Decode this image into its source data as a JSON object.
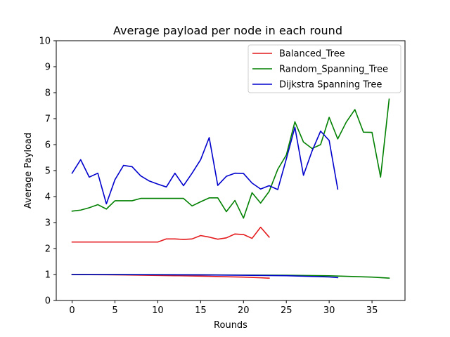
{
  "chart_data": {
    "type": "line",
    "title": "Average payload per node in each round",
    "xlabel": "Rounds",
    "ylabel": "Average Payload",
    "xlim": [
      -1.85,
      38.85
    ],
    "ylim": [
      0,
      10
    ],
    "xticks": [
      0,
      5,
      10,
      15,
      20,
      25,
      30,
      35
    ],
    "yticks": [
      0,
      1,
      2,
      3,
      4,
      5,
      6,
      7,
      8,
      9,
      10
    ],
    "legend_position": "top-right",
    "grid": false,
    "series": [
      {
        "name": "Balanced_Tree",
        "color": "#e41a1c",
        "x": [
          0,
          1,
          2,
          3,
          4,
          5,
          6,
          7,
          8,
          9,
          10,
          11,
          12,
          13,
          14,
          15,
          16,
          17,
          18,
          19,
          20,
          21,
          22,
          23
        ],
        "y": [
          2.25,
          2.25,
          2.25,
          2.25,
          2.25,
          2.25,
          2.25,
          2.25,
          2.25,
          2.25,
          2.25,
          2.37,
          2.37,
          2.35,
          2.37,
          2.5,
          2.44,
          2.36,
          2.41,
          2.56,
          2.54,
          2.39,
          2.82,
          2.44
        ]
      },
      {
        "name": "Balanced_Tree",
        "color": "#e41a1c",
        "x": [
          0,
          2,
          4,
          6,
          8,
          10,
          12,
          14,
          16,
          18,
          20,
          22,
          23
        ],
        "y": [
          1.0,
          0.995,
          0.99,
          0.985,
          0.975,
          0.965,
          0.955,
          0.945,
          0.93,
          0.915,
          0.9,
          0.875,
          0.86
        ]
      },
      {
        "name": "Random_Spanning_Tree",
        "color": "#008000",
        "x": [
          0,
          1,
          2,
          3,
          4,
          5,
          6,
          7,
          8,
          9,
          10,
          11,
          12,
          13,
          14,
          15,
          16,
          17,
          18,
          19,
          20,
          21,
          22,
          23,
          24,
          25,
          26,
          27,
          28,
          29,
          30,
          31,
          32,
          33,
          34,
          35,
          36,
          37
        ],
        "y": [
          3.44,
          3.48,
          3.57,
          3.69,
          3.52,
          3.84,
          3.84,
          3.84,
          3.93,
          3.93,
          3.93,
          3.93,
          3.93,
          3.93,
          3.64,
          3.8,
          3.95,
          3.95,
          3.42,
          3.85,
          3.17,
          4.15,
          3.75,
          4.2,
          5.05,
          5.6,
          6.88,
          6.1,
          5.85,
          6.0,
          7.05,
          6.22,
          6.87,
          7.35,
          6.48,
          6.47,
          4.75,
          7.75
        ]
      },
      {
        "name": "Random_Spanning_Tree",
        "color": "#008000",
        "x": [
          0,
          5,
          10,
          15,
          20,
          25,
          30,
          35,
          37
        ],
        "y": [
          1.0,
          1.0,
          0.995,
          0.99,
          0.98,
          0.97,
          0.95,
          0.9,
          0.86
        ]
      },
      {
        "name": "Dijkstra Spanning Tree",
        "color": "#0000cd",
        "x": [
          0,
          1,
          2,
          3,
          4,
          5,
          6,
          7,
          8,
          9,
          10,
          11,
          12,
          13,
          14,
          15,
          16,
          17,
          18,
          19,
          20,
          21,
          22,
          23,
          24,
          25,
          26,
          27,
          28,
          29,
          30,
          31
        ],
        "y": [
          4.9,
          5.42,
          4.75,
          4.9,
          3.72,
          4.65,
          5.2,
          5.15,
          4.8,
          4.6,
          4.48,
          4.37,
          4.9,
          4.42,
          4.9,
          5.42,
          6.27,
          4.43,
          4.78,
          4.9,
          4.89,
          4.52,
          4.29,
          4.42,
          4.27,
          5.45,
          6.67,
          4.82,
          5.75,
          6.52,
          6.16,
          4.29
        ]
      },
      {
        "name": "Dijkstra Spanning Tree",
        "color": "#0000cd",
        "x": [
          0,
          5,
          10,
          15,
          20,
          25,
          30,
          31
        ],
        "y": [
          1.0,
          1.0,
          0.99,
          0.985,
          0.97,
          0.955,
          0.905,
          0.88
        ]
      }
    ],
    "legend": [
      {
        "label": "Balanced_Tree",
        "color": "#e41a1c"
      },
      {
        "label": "Random_Spanning_Tree",
        "color": "#008000"
      },
      {
        "label": "Dijkstra Spanning Tree",
        "color": "#0000cd"
      }
    ]
  }
}
